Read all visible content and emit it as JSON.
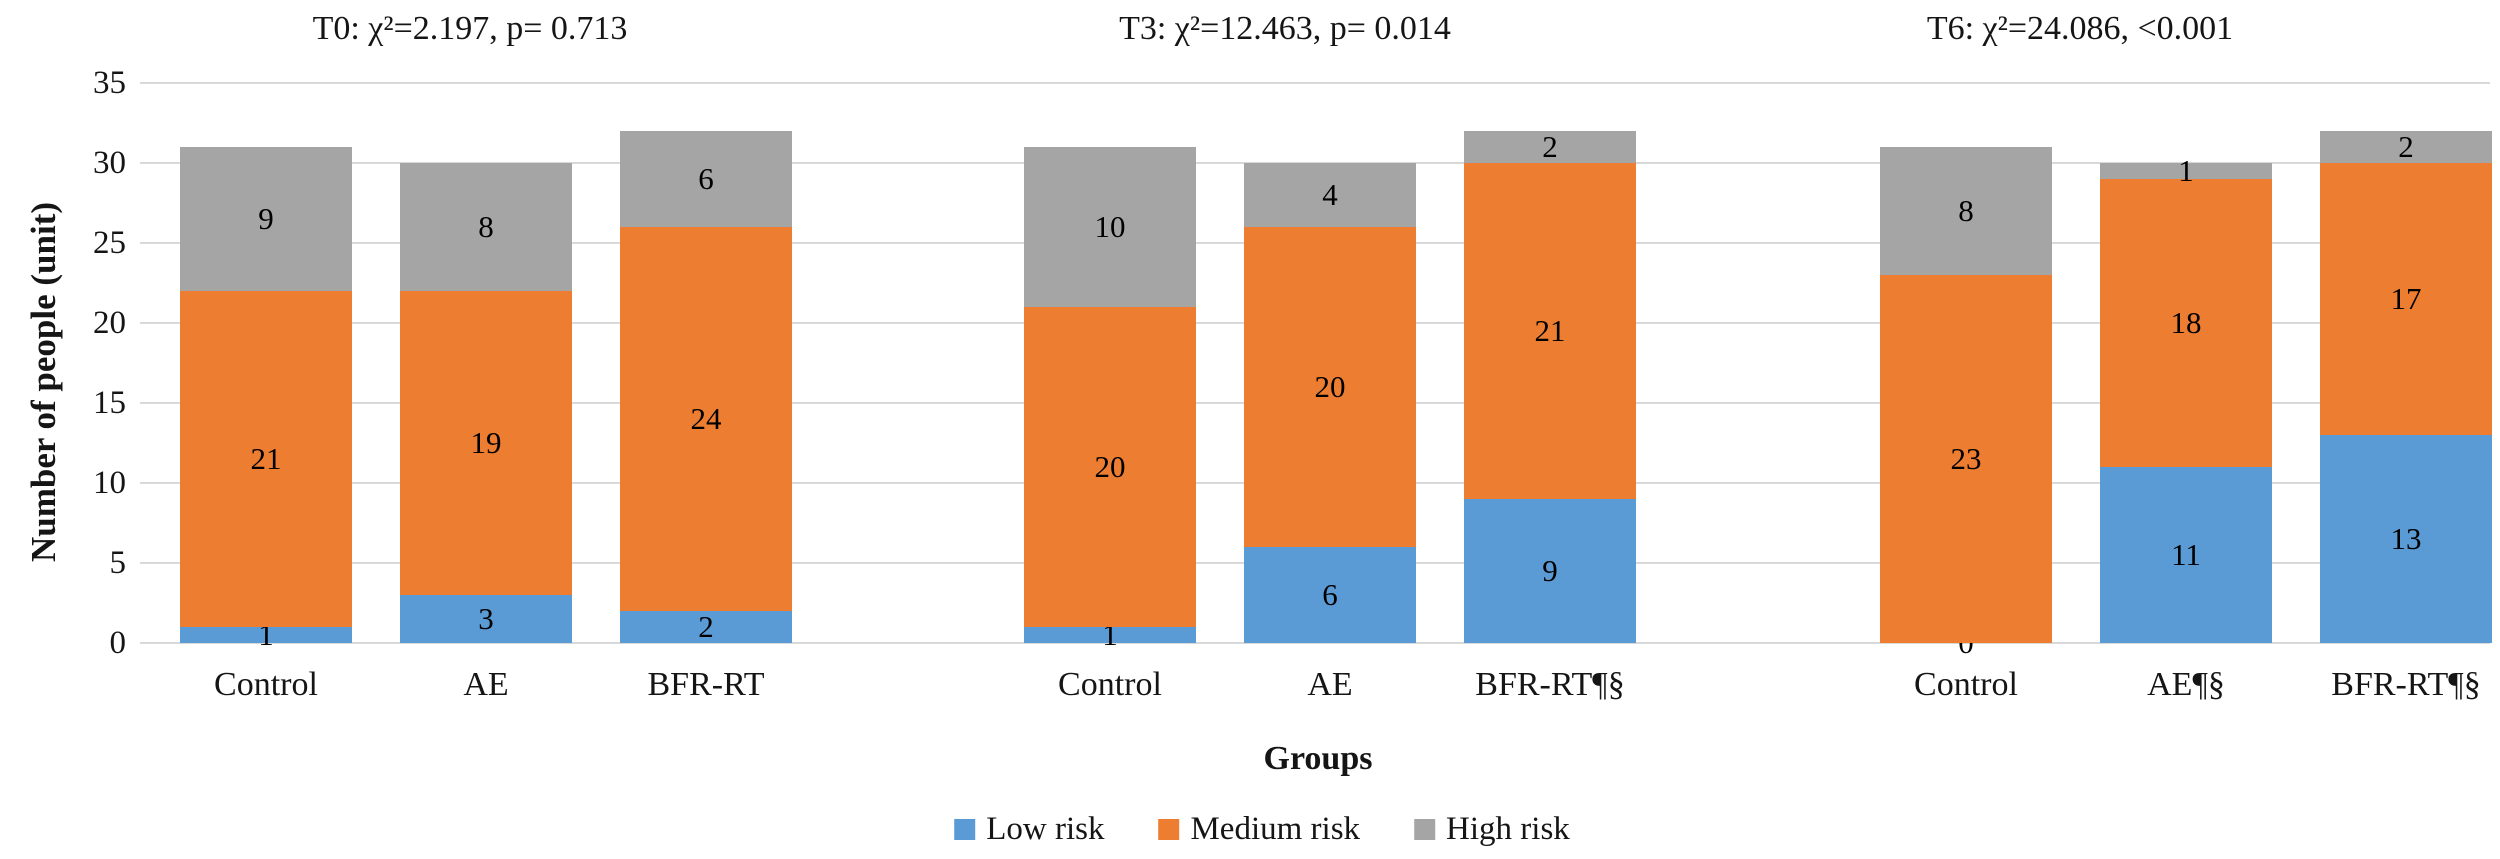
{
  "chart_data": {
    "type": "bar",
    "stacked": true,
    "ylabel": "Number of people (unit)",
    "xlabel": "Groups",
    "ylim": [
      0,
      35
    ],
    "ytick_step": 5,
    "yticks": [
      0,
      5,
      10,
      15,
      20,
      25,
      30,
      35
    ],
    "grid": true,
    "gridline_color": "#d9d9d9",
    "background_color": "#ffffff",
    "text_color": "#151515",
    "data_label_color": "#000000",
    "legend_position": "bottom-center",
    "series_names": [
      "Low risk",
      "Medium risk",
      "High risk"
    ],
    "series_colors": [
      "#5b9bd5",
      "#ed7d31",
      "#a5a5a5"
    ],
    "panels": [
      {
        "title": "T0: χ²=2.197, p= 0.713",
        "categories": [
          "Control",
          "AE",
          "BFR-RT"
        ],
        "series": [
          {
            "name": "Low risk",
            "values": [
              1,
              3,
              2
            ]
          },
          {
            "name": "Medium risk",
            "values": [
              21,
              19,
              24
            ]
          },
          {
            "name": "High risk",
            "values": [
              9,
              8,
              6
            ]
          }
        ],
        "totals": [
          31,
          30,
          32
        ]
      },
      {
        "title": "T3: χ²=12.463, p= 0.014",
        "categories": [
          "Control",
          "AE",
          "BFR-RT¶§"
        ],
        "series": [
          {
            "name": "Low risk",
            "values": [
              1,
              6,
              9
            ]
          },
          {
            "name": "Medium risk",
            "values": [
              20,
              20,
              21
            ]
          },
          {
            "name": "High risk",
            "values": [
              10,
              4,
              2
            ]
          }
        ],
        "totals": [
          31,
          30,
          32
        ]
      },
      {
        "title": "T6: χ²=24.086, <0.001",
        "categories": [
          "Control",
          "AE¶§",
          "BFR-RT¶§"
        ],
        "series": [
          {
            "name": "Low risk",
            "values": [
              0,
              11,
              13
            ]
          },
          {
            "name": "Medium risk",
            "values": [
              23,
              18,
              17
            ]
          },
          {
            "name": "High risk",
            "values": [
              8,
              1,
              2
            ]
          }
        ],
        "totals": [
          31,
          30,
          32
        ]
      }
    ],
    "legend": {
      "entries": [
        {
          "label": "Low risk",
          "color": "#5b9bd5"
        },
        {
          "label": "Medium risk",
          "color": "#ed7d31"
        },
        {
          "label": "High risk",
          "color": "#a5a5a5"
        }
      ]
    }
  }
}
